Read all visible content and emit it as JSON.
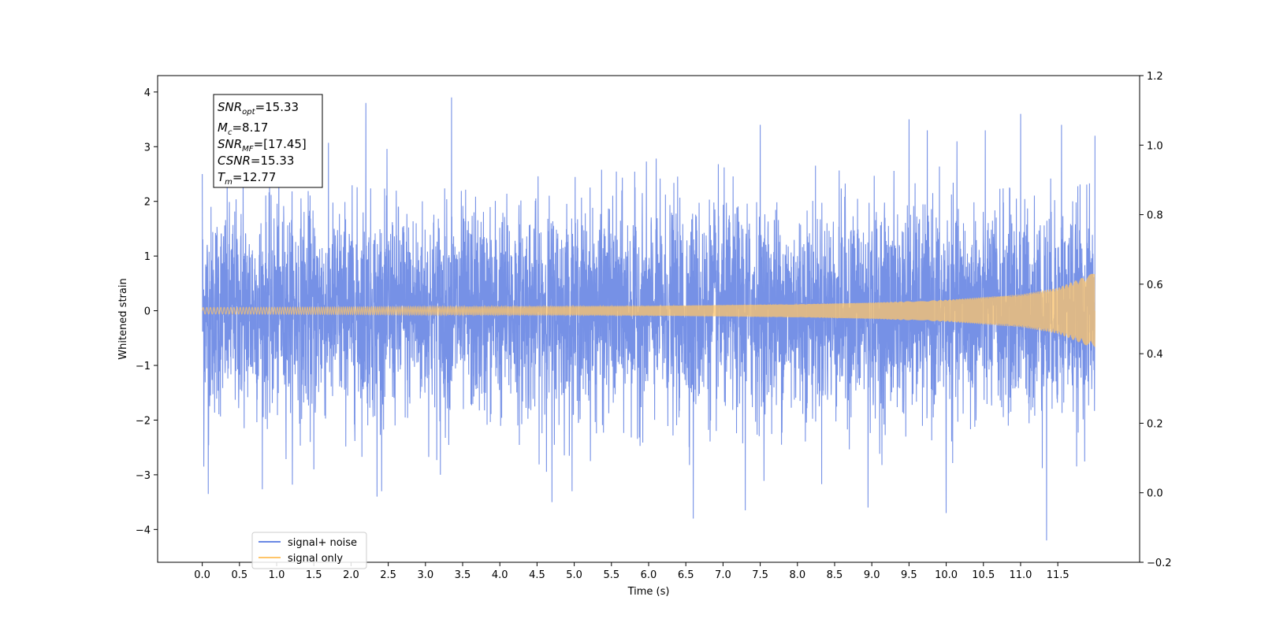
{
  "chart_data": {
    "type": "line",
    "xlabel": "Time (s)",
    "ylabel": "Whitened strain",
    "xlim": [
      -0.6,
      12.6
    ],
    "ylim": [
      -4.6,
      4.3
    ],
    "y2lim": [
      -0.2,
      1.2
    ],
    "x_ticks": [
      0.0,
      0.5,
      1.0,
      1.5,
      2.0,
      2.5,
      3.0,
      3.5,
      4.0,
      4.5,
      5.0,
      5.5,
      6.0,
      6.5,
      7.0,
      7.5,
      8.0,
      8.5,
      9.0,
      9.5,
      10.0,
      10.5,
      11.0,
      11.5
    ],
    "x_tick_labels": [
      "0.0",
      "0.5",
      "1.0",
      "1.5",
      "2.0",
      "2.5",
      "3.0",
      "3.5",
      "4.0",
      "4.5",
      "5.0",
      "5.5",
      "6.0",
      "6.5",
      "7.0",
      "7.5",
      "8.0",
      "8.5",
      "9.0",
      "9.5",
      "10.0",
      "10.5",
      "11.0",
      "11.5"
    ],
    "y_ticks": [
      -4,
      -3,
      -2,
      -1,
      0,
      1,
      2,
      3,
      4
    ],
    "y_tick_labels": [
      "−4",
      "−3",
      "−2",
      "−1",
      "0",
      "1",
      "2",
      "3",
      "4"
    ],
    "y2_ticks": [
      -0.2,
      0.0,
      0.2,
      0.4,
      0.6,
      0.8,
      1.0,
      1.2
    ],
    "y2_tick_labels": [
      "−0.2",
      "0.0",
      "0.2",
      "0.4",
      "0.6",
      "0.8",
      "1.0",
      "1.2"
    ],
    "grid": false,
    "legend_position": "bottom-left",
    "series": [
      {
        "name": "signal+ noise",
        "color": "#6a88e4",
        "x_range": [
          0.0,
          12.0
        ],
        "typical_amplitude": 1.5,
        "peaks": [
          {
            "x": 0.0,
            "y": 2.5
          },
          {
            "x": 0.02,
            "y": -2.85
          },
          {
            "x": 0.08,
            "y": -3.35
          },
          {
            "x": 0.55,
            "y": 2.5
          },
          {
            "x": 1.5,
            "y": -2.9
          },
          {
            "x": 2.2,
            "y": 3.8
          },
          {
            "x": 2.35,
            "y": -3.4
          },
          {
            "x": 3.35,
            "y": 3.9
          },
          {
            "x": 3.2,
            "y": -3.0
          },
          {
            "x": 4.7,
            "y": -3.5
          },
          {
            "x": 6.6,
            "y": -3.8
          },
          {
            "x": 7.3,
            "y": -3.65
          },
          {
            "x": 7.5,
            "y": 3.4
          },
          {
            "x": 8.95,
            "y": -3.6
          },
          {
            "x": 9.5,
            "y": 3.5
          },
          {
            "x": 10.0,
            "y": -3.7
          },
          {
            "x": 11.0,
            "y": 3.6
          },
          {
            "x": 11.35,
            "y": -4.2
          },
          {
            "x": 11.55,
            "y": 3.4
          },
          {
            "x": 12.0,
            "y": 3.2
          }
        ]
      },
      {
        "name": "signal only",
        "color": "#ffc56a",
        "x_range": [
          0.0,
          12.0
        ],
        "envelope": [
          {
            "x": 0.0,
            "y": 0.06
          },
          {
            "x": 2.0,
            "y": 0.07
          },
          {
            "x": 4.0,
            "y": 0.08
          },
          {
            "x": 6.0,
            "y": 0.09
          },
          {
            "x": 8.0,
            "y": 0.12
          },
          {
            "x": 9.0,
            "y": 0.15
          },
          {
            "x": 10.0,
            "y": 0.2
          },
          {
            "x": 11.0,
            "y": 0.3
          },
          {
            "x": 11.5,
            "y": 0.42
          },
          {
            "x": 12.0,
            "y": 0.7
          }
        ]
      }
    ]
  },
  "annotation": {
    "snr_opt": {
      "main": "SNR",
      "sub": "opt",
      "value": "=15.33"
    },
    "mc": {
      "main": "M",
      "sub": "c",
      "value": "=8.17"
    },
    "snr_mf": {
      "main": "SNR",
      "sub": "MF",
      "value": "=[17.45]"
    },
    "csnr": {
      "main": "CSNR",
      "sub": "",
      "value": "=15.33"
    },
    "tm": {
      "main": "T",
      "sub": "m",
      "value": "=12.77"
    }
  }
}
